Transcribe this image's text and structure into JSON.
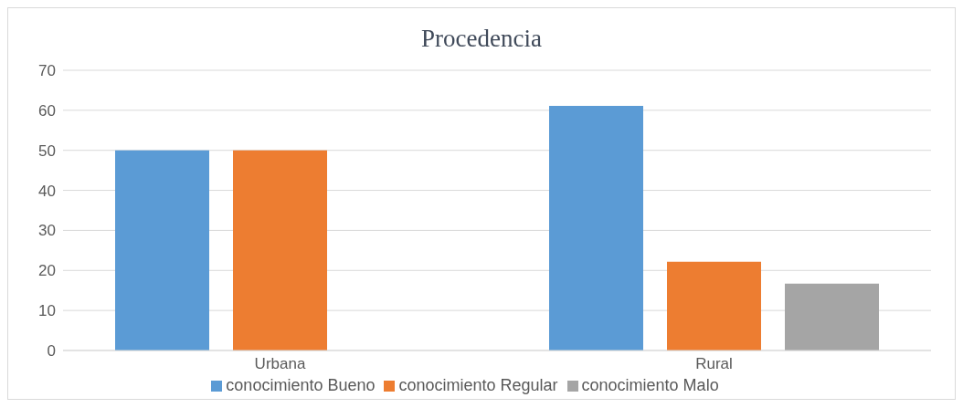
{
  "chart_data": {
    "type": "bar",
    "title": "Procedencia",
    "categories": [
      "Urbana",
      "Rural"
    ],
    "series": [
      {
        "name": "conocimiento Bueno",
        "color": "#5b9bd5",
        "values": [
          50,
          61.1
        ]
      },
      {
        "name": "conocimiento Regular",
        "color": "#ed7d31",
        "values": [
          50,
          22.2
        ]
      },
      {
        "name": "conocimiento Malo",
        "color": "#a5a5a5",
        "values": [
          0,
          16.7
        ]
      }
    ],
    "ylim": [
      0,
      70
    ],
    "yticks": [
      0,
      10,
      20,
      30,
      40,
      50,
      60,
      70
    ],
    "grid": "y",
    "legend": "bottom"
  }
}
